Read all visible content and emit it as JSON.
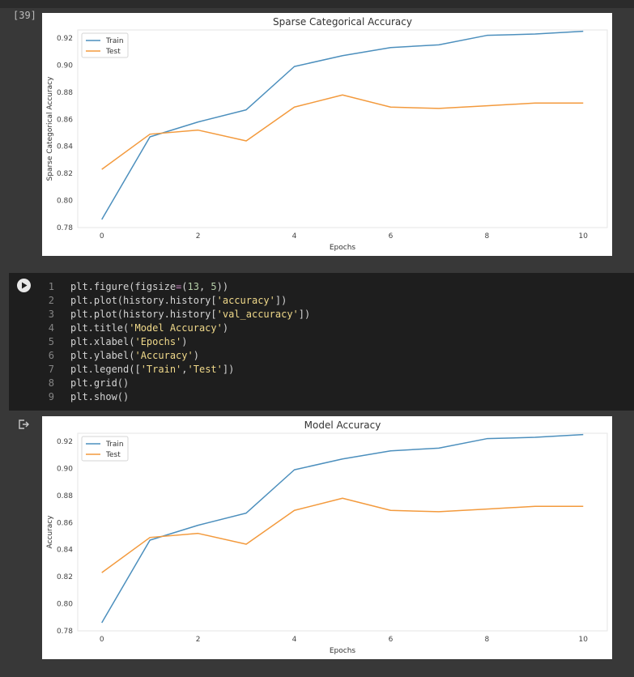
{
  "cell": {
    "execution_count": "[39]"
  },
  "code": {
    "lines": [
      {
        "num": "1",
        "tokens": [
          {
            "t": "plt.figure(figsize"
          },
          {
            "t": "=",
            "c": "s-op"
          },
          {
            "t": "("
          },
          {
            "t": "13",
            "c": "s-num"
          },
          {
            "t": ", "
          },
          {
            "t": "5",
            "c": "s-num"
          },
          {
            "t": "))"
          }
        ]
      },
      {
        "num": "2",
        "tokens": [
          {
            "t": "plt.plot(history.history["
          },
          {
            "t": "'accuracy'",
            "c": "s-str y"
          },
          {
            "t": "])"
          }
        ]
      },
      {
        "num": "3",
        "tokens": [
          {
            "t": "plt.plot(history.history["
          },
          {
            "t": "'val_accuracy'",
            "c": "s-str y"
          },
          {
            "t": "])"
          }
        ]
      },
      {
        "num": "4",
        "tokens": [
          {
            "t": "plt.title("
          },
          {
            "t": "'Model Accuracy'",
            "c": "s-str y"
          },
          {
            "t": ")"
          }
        ]
      },
      {
        "num": "5",
        "tokens": [
          {
            "t": "plt.xlabel("
          },
          {
            "t": "'Epochs'",
            "c": "s-str y"
          },
          {
            "t": ")"
          }
        ]
      },
      {
        "num": "6",
        "tokens": [
          {
            "t": "plt.ylabel("
          },
          {
            "t": "'Accuracy'",
            "c": "s-str y"
          },
          {
            "t": ")"
          }
        ]
      },
      {
        "num": "7",
        "tokens": [
          {
            "t": "plt.legend(["
          },
          {
            "t": "'Train'",
            "c": "s-str y"
          },
          {
            "t": ","
          },
          {
            "t": "'Test'",
            "c": "s-str y"
          },
          {
            "t": "])"
          }
        ]
      },
      {
        "num": "8",
        "tokens": [
          {
            "t": "plt.grid()"
          }
        ]
      },
      {
        "num": "9",
        "tokens": [
          {
            "t": "plt.show()"
          }
        ]
      }
    ]
  },
  "colors": {
    "train": "#4c8fbd",
    "test": "#f39a3d"
  },
  "icons": {
    "run": "play-icon",
    "output": "output-arrow-icon"
  },
  "chart_data": [
    {
      "type": "line",
      "title": "Sparse Categorical Accuracy",
      "xlabel": "Epochs",
      "ylabel": "Sparse Categorical Accuracy",
      "x": [
        0,
        1,
        2,
        3,
        4,
        5,
        6,
        7,
        8,
        9,
        10
      ],
      "xticks": [
        "0",
        "2",
        "4",
        "6",
        "8",
        "10"
      ],
      "yticks": [
        "0.78",
        "0.80",
        "0.82",
        "0.84",
        "0.86",
        "0.88",
        "0.90",
        "0.92"
      ],
      "xlim": [
        -0.5,
        10.5
      ],
      "ylim": [
        0.78,
        0.926
      ],
      "legend_position": "top-left",
      "grid": false,
      "series": [
        {
          "name": "Train",
          "values": [
            0.786,
            0.847,
            0.858,
            0.867,
            0.899,
            0.907,
            0.913,
            0.915,
            0.922,
            0.923,
            0.925
          ]
        },
        {
          "name": "Test",
          "values": [
            0.823,
            0.849,
            0.852,
            0.844,
            0.869,
            0.878,
            0.869,
            0.868,
            0.87,
            0.872,
            0.872
          ]
        }
      ]
    },
    {
      "type": "line",
      "title": "Model Accuracy",
      "xlabel": "Epochs",
      "ylabel": "Accuracy",
      "x": [
        0,
        1,
        2,
        3,
        4,
        5,
        6,
        7,
        8,
        9,
        10
      ],
      "xticks": [
        "0",
        "2",
        "4",
        "6",
        "8",
        "10"
      ],
      "yticks": [
        "0.78",
        "0.80",
        "0.82",
        "0.84",
        "0.86",
        "0.88",
        "0.90",
        "0.92"
      ],
      "xlim": [
        -0.5,
        10.5
      ],
      "ylim": [
        0.78,
        0.926
      ],
      "legend_position": "top-left",
      "grid": false,
      "series": [
        {
          "name": "Train",
          "values": [
            0.786,
            0.847,
            0.858,
            0.867,
            0.899,
            0.907,
            0.913,
            0.915,
            0.922,
            0.923,
            0.925
          ]
        },
        {
          "name": "Test",
          "values": [
            0.823,
            0.849,
            0.852,
            0.844,
            0.869,
            0.878,
            0.869,
            0.868,
            0.87,
            0.872,
            0.872
          ]
        }
      ]
    }
  ]
}
